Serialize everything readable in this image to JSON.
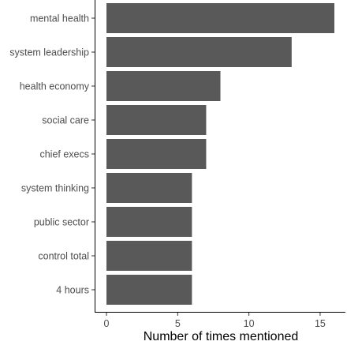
{
  "chart_data": {
    "type": "bar",
    "orientation": "horizontal",
    "categories": [
      "mental health",
      "system leadership",
      "health economy",
      "social care",
      "chief execs",
      "system thinking",
      "public sector",
      "control total",
      "4 hours"
    ],
    "values": [
      16,
      13,
      8,
      7,
      7,
      6,
      6,
      6,
      6
    ],
    "title": "",
    "xlabel": "Number of times mentioned",
    "ylabel": "",
    "xlim": [
      0,
      16.8
    ],
    "xticks": [
      0,
      5,
      10,
      15
    ],
    "grid": false,
    "legend": "none",
    "bar_color": "#595959"
  }
}
